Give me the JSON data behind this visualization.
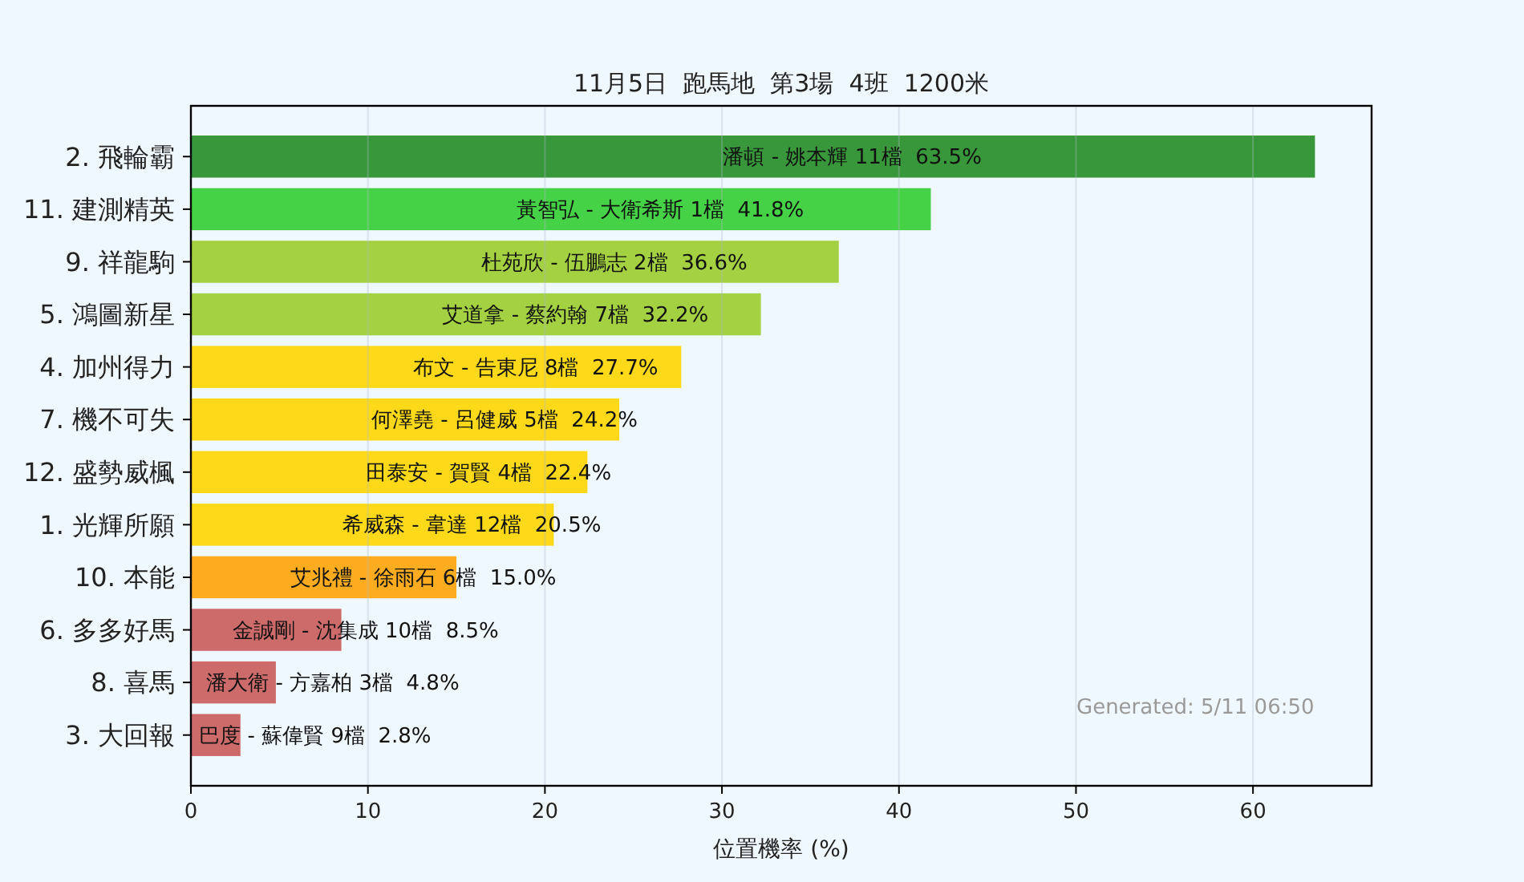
{
  "chart_data": {
    "type": "bar",
    "orientation": "horizontal",
    "title": "11月5日  跑馬地  第3場  4班  1200米",
    "xlabel": "位置機率 (%)",
    "categories": [
      "2. 飛輪霸",
      "11. 建測精英",
      "9. 祥龍駒",
      "5. 鴻圖新星",
      "4. 加州得力",
      "7. 機不可失",
      "12. 盛勢威楓",
      "1. 光輝所願",
      "10. 本能",
      "6. 多多好馬",
      "8. 喜馬",
      "3. 大回報"
    ],
    "values": [
      63.5,
      41.8,
      36.6,
      32.2,
      27.7,
      24.2,
      22.4,
      20.5,
      15.0,
      8.5,
      4.8,
      2.8
    ],
    "colors": [
      "#37973a",
      "#46d246",
      "#a3d141",
      "#a3d141",
      "#fdd91a",
      "#fdd91a",
      "#fdd91a",
      "#fdd91a",
      "#fdac1f",
      "#cd6b6b",
      "#cd6b6b",
      "#cd6b6b"
    ],
    "value_labels": [
      "潘頓 - 姚本輝 11檔  63.5%",
      "黃智弘 - 大衛希斯 1檔  41.8%",
      "杜苑欣 - 伍鵬志 2檔  36.6%",
      "艾道拿 - 蔡約翰 7檔  32.2%",
      "布文 - 告東尼 8檔  27.7%",
      "何澤堯 - 呂健威 5檔  24.2%",
      "田泰安 - 賀賢 4檔  22.4%",
      "希威森 - 韋達 12檔  20.5%",
      "艾兆禮 - 徐雨石 6檔  15.0%",
      "金誠剛 - 沈集成 10檔  8.5%",
      "潘大衛 - 方嘉柏 3檔  4.8%",
      "巴度 - 蘇偉賢 9檔  2.8%"
    ],
    "xlim": [
      0,
      66.7
    ],
    "xticks": [
      0,
      10,
      20,
      30,
      40,
      50,
      60
    ],
    "grid": "x",
    "annotations": [
      "Generated: 5/11 06:50"
    ]
  }
}
